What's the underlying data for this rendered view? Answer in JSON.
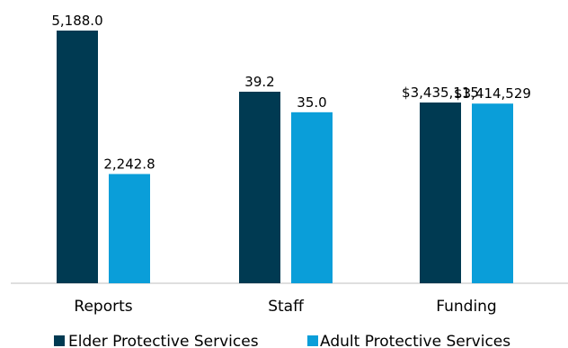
{
  "chart_data": {
    "type": "bar",
    "categories": [
      "Reports",
      "Staff",
      "Funding"
    ],
    "series": [
      {
        "name": "Elder Protective Services",
        "color": "#003A52",
        "values": [
          5188.0,
          39.2,
          3435115
        ],
        "labels": [
          "5,188.0",
          "39.2",
          "$3,435,115"
        ]
      },
      {
        "name": "Adult Protective Services",
        "color": "#0A9ED9",
        "values": [
          2242.8,
          35.0,
          3414529
        ],
        "labels": [
          "2,242.8",
          "35.0",
          "$3,414,529"
        ]
      }
    ],
    "legend_position": "bottom",
    "grid": false,
    "independent_scale_per_category": true
  }
}
